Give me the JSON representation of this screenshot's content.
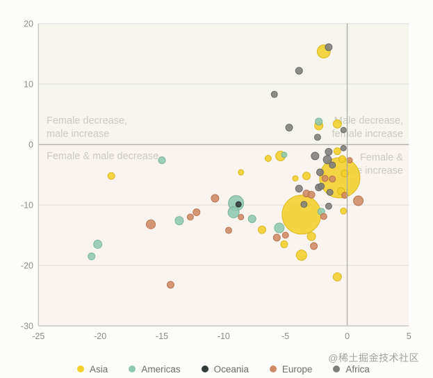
{
  "watermark": "@稀土掘金技术社区",
  "chart_data": {
    "type": "scatter",
    "xlim": [
      -25,
      5
    ],
    "ylim": [
      -30,
      20
    ],
    "x_ticks": [
      -25,
      -20,
      -15,
      -10,
      -5,
      0,
      5
    ],
    "y_ticks": [
      20,
      10,
      0,
      -10,
      -20,
      -30
    ],
    "grid": true,
    "zero_lines": true,
    "legend_position": "bottom",
    "quadrant_labels": {
      "top_left": [
        "Female decrease,",
        "male increase"
      ],
      "bottom_left": [
        "Female & male decrease"
      ],
      "top_right": [
        "Male decrease,",
        "female increase"
      ],
      "bottom_right": [
        "Female &",
        "male increase"
      ]
    },
    "background": {
      "upper": "#F6F6EF",
      "lower": "#FAF4F0",
      "grid_color": "#DEDED8",
      "zero_line_color": "#ABABA6",
      "axis_line_color": "#C9C9C3"
    },
    "series": [
      {
        "name": "Asia",
        "color": "#F2CF2A",
        "stroke": "#D8B516",
        "points": [
          {
            "x": -19.1,
            "y": -5.2,
            "r": 5
          },
          {
            "x": -8.6,
            "y": -4.6,
            "r": 4
          },
          {
            "x": -6.9,
            "y": -14.1,
            "r": 5.5
          },
          {
            "x": -6.4,
            "y": -2.3,
            "r": 4.5
          },
          {
            "x": -5.4,
            "y": -1.9,
            "r": 7
          },
          {
            "x": -5.1,
            "y": -16.5,
            "r": 5
          },
          {
            "x": -4.2,
            "y": -5.6,
            "r": 4
          },
          {
            "x": -3.7,
            "y": -11.6,
            "r": 28
          },
          {
            "x": -3.7,
            "y": -18.3,
            "r": 7.5
          },
          {
            "x": -3.3,
            "y": -5.2,
            "r": 5.5
          },
          {
            "x": -2.9,
            "y": -15.2,
            "r": 6
          },
          {
            "x": -2.3,
            "y": 3.1,
            "r": 6
          },
          {
            "x": -1.9,
            "y": 15.4,
            "r": 9.5
          },
          {
            "x": -0.8,
            "y": 3.4,
            "r": 6
          },
          {
            "x": -0.8,
            "y": -1.1,
            "r": 5
          },
          {
            "x": -0.6,
            "y": -5.5,
            "r": 29
          },
          {
            "x": -0.4,
            "y": -2.4,
            "r": 5
          },
          {
            "x": -0.2,
            "y": -4.8,
            "r": 5
          },
          {
            "x": -0.5,
            "y": -7.7,
            "r": 5
          },
          {
            "x": -0.3,
            "y": -11.0,
            "r": 4.5
          },
          {
            "x": -0.8,
            "y": -21.9,
            "r": 6
          }
        ]
      },
      {
        "name": "Americas",
        "color": "#8FC8B1",
        "stroke": "#72B096",
        "points": [
          {
            "x": -20.7,
            "y": -18.5,
            "r": 5
          },
          {
            "x": -20.2,
            "y": -16.5,
            "r": 6
          },
          {
            "x": -15.0,
            "y": -2.6,
            "r": 5
          },
          {
            "x": -13.6,
            "y": -12.6,
            "r": 6
          },
          {
            "x": -9.0,
            "y": -9.7,
            "r": 11
          },
          {
            "x": -9.2,
            "y": -11.2,
            "r": 8
          },
          {
            "x": -7.7,
            "y": -12.3,
            "r": 5.5
          },
          {
            "x": -5.5,
            "y": -13.8,
            "r": 7
          },
          {
            "x": -5.1,
            "y": -1.7,
            "r": 4
          },
          {
            "x": -2.3,
            "y": 3.8,
            "r": 5
          },
          {
            "x": -2.1,
            "y": -11.1,
            "r": 5
          }
        ]
      },
      {
        "name": "Oceania",
        "color": "#2F3C3A",
        "stroke": "#1F2B29",
        "points": [
          {
            "x": -8.8,
            "y": -9.9,
            "r": 4
          }
        ]
      },
      {
        "name": "Europe",
        "color": "#CE8A63",
        "stroke": "#B56F47",
        "points": [
          {
            "x": -15.9,
            "y": -13.2,
            "r": 6.5
          },
          {
            "x": -14.3,
            "y": -23.2,
            "r": 5
          },
          {
            "x": -12.7,
            "y": -12.0,
            "r": 4.5
          },
          {
            "x": -12.2,
            "y": -11.2,
            "r": 5
          },
          {
            "x": -10.7,
            "y": -8.9,
            "r": 5.5
          },
          {
            "x": -9.6,
            "y": -14.2,
            "r": 4.5
          },
          {
            "x": -8.6,
            "y": -12.0,
            "r": 4
          },
          {
            "x": -5.7,
            "y": -15.4,
            "r": 5
          },
          {
            "x": -5.0,
            "y": -15.0,
            "r": 4.5
          },
          {
            "x": -3.3,
            "y": -8.1,
            "r": 5
          },
          {
            "x": -2.9,
            "y": -8.3,
            "r": 5
          },
          {
            "x": -2.7,
            "y": -16.8,
            "r": 5
          },
          {
            "x": -1.9,
            "y": -11.9,
            "r": 4.5
          },
          {
            "x": -1.8,
            "y": -5.6,
            "r": 4.5
          },
          {
            "x": -1.2,
            "y": -5.7,
            "r": 4.5
          },
          {
            "x": -0.2,
            "y": -8.4,
            "r": 4.5
          },
          {
            "x": 0.2,
            "y": -2.6,
            "r": 4
          },
          {
            "x": 0.9,
            "y": -9.3,
            "r": 7
          }
        ]
      },
      {
        "name": "Africa",
        "color": "#7D7D7B",
        "stroke": "#636361",
        "points": [
          {
            "x": -5.9,
            "y": 8.3,
            "r": 4.5
          },
          {
            "x": -4.7,
            "y": 2.8,
            "r": 5
          },
          {
            "x": -3.9,
            "y": 12.2,
            "r": 5
          },
          {
            "x": -3.9,
            "y": -7.3,
            "r": 5
          },
          {
            "x": -3.5,
            "y": -9.9,
            "r": 4.5
          },
          {
            "x": -2.6,
            "y": -1.9,
            "r": 5.5
          },
          {
            "x": -2.4,
            "y": 1.2,
            "r": 4.5
          },
          {
            "x": -2.3,
            "y": -7.1,
            "r": 5
          },
          {
            "x": -2.2,
            "y": -4.6,
            "r": 5
          },
          {
            "x": -2.1,
            "y": -6.9,
            "r": 4.5
          },
          {
            "x": -1.6,
            "y": -2.5,
            "r": 6
          },
          {
            "x": -1.5,
            "y": -1.2,
            "r": 5
          },
          {
            "x": -1.5,
            "y": 16.1,
            "r": 5
          },
          {
            "x": -1.5,
            "y": -10.2,
            "r": 4.5
          },
          {
            "x": -1.4,
            "y": -7.9,
            "r": 4.5
          },
          {
            "x": -1.2,
            "y": -3.4,
            "r": 4.5
          },
          {
            "x": -0.3,
            "y": 2.4,
            "r": 4
          },
          {
            "x": -0.3,
            "y": -0.6,
            "r": 4
          }
        ]
      }
    ]
  }
}
